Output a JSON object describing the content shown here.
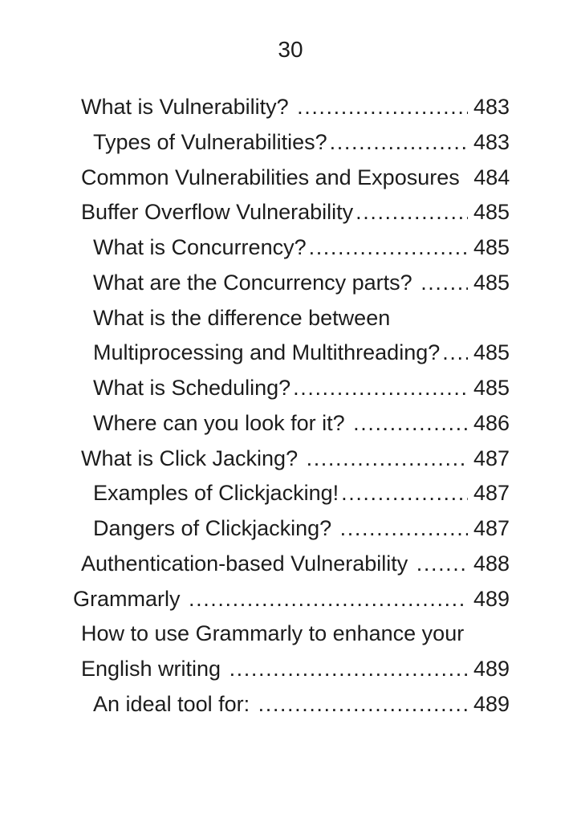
{
  "colors": {
    "text": "#1c1c1c",
    "background": "#ffffff"
  },
  "page": {
    "number": "30"
  },
  "toc": {
    "entries": [
      {
        "level": 1,
        "lines": [
          "What is Vulnerability? "
        ],
        "page": "483"
      },
      {
        "level": 2,
        "lines": [
          "Types of Vulnerabilities?"
        ],
        "page": "483"
      },
      {
        "level": 1,
        "lines": [
          "Common Vulnerabilities and Exposures "
        ],
        "page": "484"
      },
      {
        "level": 1,
        "lines": [
          "Buffer Overflow Vulnerability"
        ],
        "page": "485"
      },
      {
        "level": 2,
        "lines": [
          "What is Concurrency?"
        ],
        "page": "485"
      },
      {
        "level": 2,
        "lines": [
          "What are the Concurrency parts? "
        ],
        "page": "485"
      },
      {
        "level": 2,
        "lines": [
          "What is the difference between",
          "Multiprocessing and Multithreading?"
        ],
        "page": "485"
      },
      {
        "level": 2,
        "lines": [
          "What is Scheduling?"
        ],
        "page": "485"
      },
      {
        "level": 2,
        "lines": [
          "Where can you look for it? "
        ],
        "page": "486"
      },
      {
        "level": 1,
        "lines": [
          "What is Click Jacking? "
        ],
        "page": "487"
      },
      {
        "level": 2,
        "lines": [
          "Examples of Clickjacking!"
        ],
        "page": "487"
      },
      {
        "level": 2,
        "lines": [
          "Dangers of Clickjacking? "
        ],
        "page": "487"
      },
      {
        "level": 1,
        "lines": [
          "Authentication-based Vulnerability "
        ],
        "page": "488"
      },
      {
        "level": 0,
        "lines": [
          "Grammarly "
        ],
        "page": "489"
      },
      {
        "level": 1,
        "lines": [
          "How to use Grammarly to enhance your",
          "English writing "
        ],
        "page": "489"
      },
      {
        "level": 2,
        "lines": [
          "An ideal tool for: "
        ],
        "page": "489"
      }
    ]
  }
}
